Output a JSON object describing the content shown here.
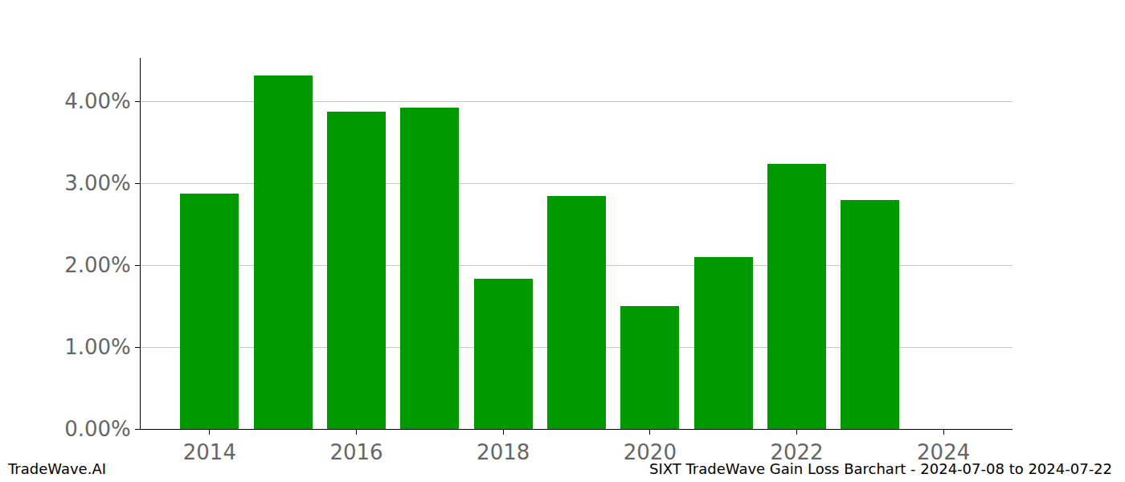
{
  "chart_data": {
    "type": "bar",
    "x": [
      2014,
      2015,
      2016,
      2017,
      2018,
      2019,
      2020,
      2021,
      2022,
      2023
    ],
    "values": [
      2.87,
      4.31,
      3.87,
      3.92,
      1.83,
      2.84,
      1.5,
      2.1,
      3.24,
      2.79
    ],
    "color": "#009900",
    "xlim": [
      2013.06,
      2024.94
    ],
    "xticks": [
      2014,
      2016,
      2018,
      2020,
      2022,
      2024
    ],
    "ylim": [
      0,
      4.53
    ],
    "yticks": [
      {
        "value": 0,
        "label": "0.00%"
      },
      {
        "value": 1,
        "label": "1.00%"
      },
      {
        "value": 2,
        "label": "2.00%"
      },
      {
        "value": 3,
        "label": "3.00%"
      },
      {
        "value": 4,
        "label": "4.00%"
      }
    ],
    "grid": true,
    "annotations": [
      "TradeWave.AI",
      "SIXT TradeWave Gain Loss Barchart - 2024-07-08 to 2024-07-22"
    ]
  }
}
